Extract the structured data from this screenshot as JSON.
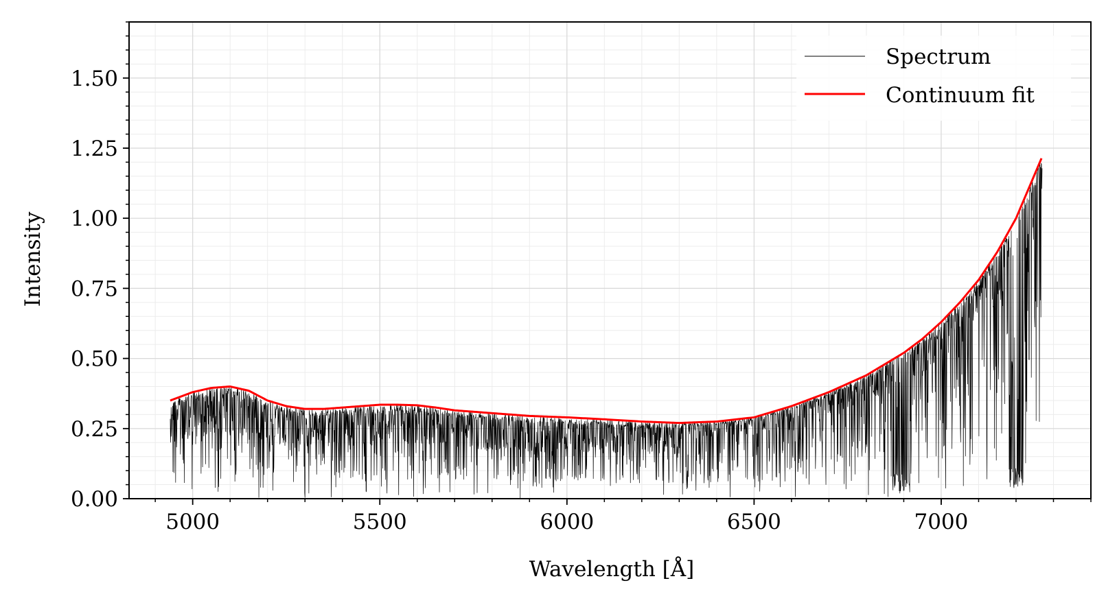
{
  "chart_data": {
    "type": "line",
    "xlabel": "Wavelength [Å]",
    "ylabel": "Intensity",
    "xlim": [
      4830,
      7400
    ],
    "ylim": [
      0.0,
      1.7
    ],
    "x_ticks_major": [
      5000,
      5500,
      6000,
      6500,
      7000
    ],
    "x_tick_labels": [
      "5000",
      "5500",
      "6000",
      "6500",
      "7000"
    ],
    "x_ticks_minor_step": 100,
    "y_ticks_major": [
      0.0,
      0.25,
      0.5,
      0.75,
      1.0,
      1.25,
      1.5
    ],
    "y_tick_labels": [
      "0.00",
      "0.25",
      "0.50",
      "0.75",
      "1.00",
      "1.25",
      "1.50"
    ],
    "y_ticks_minor_step": 0.05,
    "grid": true,
    "legend_position": "top-right",
    "series": [
      {
        "name": "Spectrum",
        "color": "#000000",
        "style": "thin line, dense absorption features below continuum",
        "x_range": [
          4940,
          7270
        ],
        "deep_absorption_bands": [
          {
            "x": [
              6870,
              6920
            ],
            "min": 0.01
          },
          {
            "x": [
              7180,
              7220
            ],
            "min": 0.03
          }
        ]
      },
      {
        "name": "Continuum fit",
        "color": "#ff0000",
        "x": [
          4940,
          5000,
          5050,
          5100,
          5150,
          5200,
          5250,
          5300,
          5350,
          5400,
          5450,
          5500,
          5550,
          5600,
          5650,
          5700,
          5800,
          5900,
          6000,
          6100,
          6200,
          6300,
          6400,
          6500,
          6600,
          6700,
          6800,
          6900,
          6950,
          7000,
          7050,
          7100,
          7150,
          7200,
          7270
        ],
        "y": [
          0.35,
          0.38,
          0.395,
          0.4,
          0.385,
          0.35,
          0.33,
          0.32,
          0.32,
          0.325,
          0.33,
          0.335,
          0.335,
          0.333,
          0.325,
          0.315,
          0.305,
          0.295,
          0.29,
          0.283,
          0.275,
          0.27,
          0.275,
          0.29,
          0.33,
          0.38,
          0.44,
          0.52,
          0.57,
          0.63,
          0.7,
          0.78,
          0.88,
          1.0,
          1.22
        ]
      }
    ]
  }
}
